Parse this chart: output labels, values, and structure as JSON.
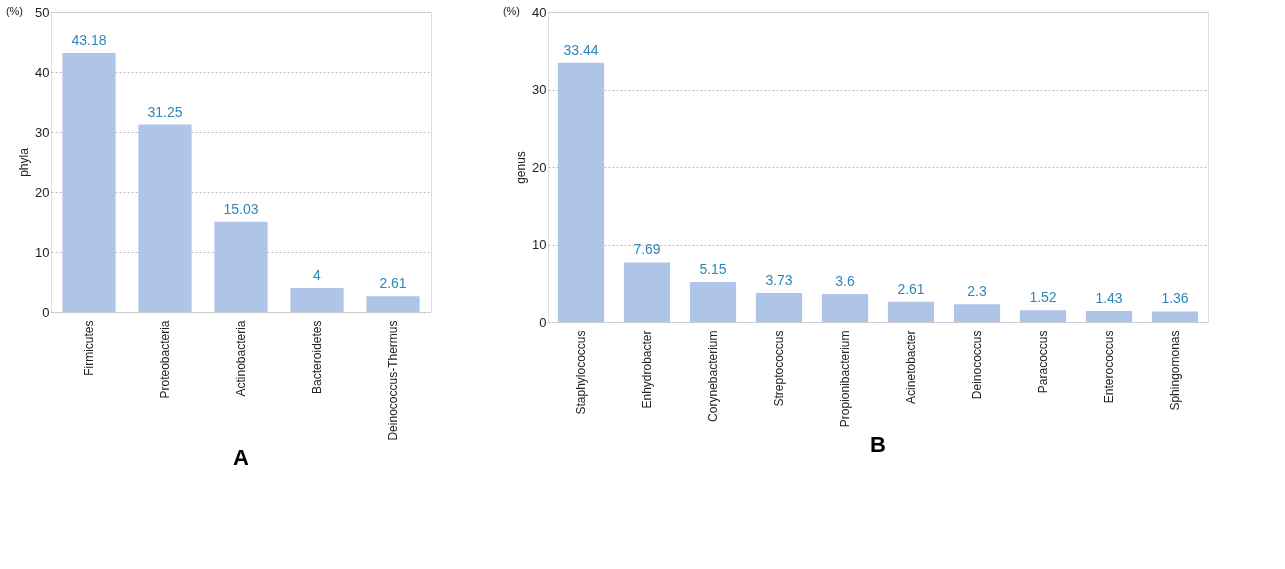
{
  "chart_data": [
    {
      "type": "bar",
      "title": "A",
      "ylabel": "phyla",
      "annotations": [
        "(%)"
      ],
      "categories": [
        "Firmicutes",
        "Proteobacteria",
        "Actinobacteria",
        "Bacteroidetes",
        "Deinococcus-Thermus"
      ],
      "series": [
        {
          "color": "#aec4e8",
          "values": [
            43.18,
            31.25,
            15.03,
            4,
            2.61
          ]
        }
      ],
      "ylim": [
        0,
        50
      ],
      "yticks": [
        0,
        10,
        20,
        30,
        40,
        50
      ],
      "grid": "y",
      "data_labels": true
    },
    {
      "type": "bar",
      "title": "B",
      "ylabel": "genus",
      "annotations": [
        "(%)"
      ],
      "categories": [
        "Staphylococcus",
        "Enhydrobacter",
        "Corynebacterium",
        "Streptococcus",
        "Propionibacterium",
        "Acinetobacter",
        "Deinococcus",
        "Paracoccus",
        "Enterococcus",
        "Sphingomonas"
      ],
      "series": [
        {
          "color": "#aec4e8",
          "values": [
            33.44,
            7.69,
            5.15,
            3.73,
            3.6,
            2.61,
            2.3,
            1.52,
            1.43,
            1.36
          ]
        }
      ],
      "ylim": [
        0,
        40
      ],
      "yticks": [
        0,
        10,
        20,
        30,
        40
      ],
      "grid": "y",
      "data_labels": true
    }
  ]
}
